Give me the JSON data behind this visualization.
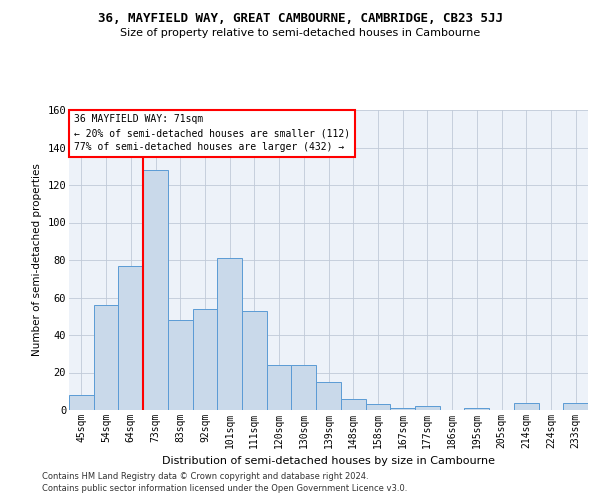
{
  "title": "36, MAYFIELD WAY, GREAT CAMBOURNE, CAMBRIDGE, CB23 5JJ",
  "subtitle": "Size of property relative to semi-detached houses in Cambourne",
  "xlabel": "Distribution of semi-detached houses by size in Cambourne",
  "ylabel": "Number of semi-detached properties",
  "categories": [
    "45sqm",
    "54sqm",
    "64sqm",
    "73sqm",
    "83sqm",
    "92sqm",
    "101sqm",
    "111sqm",
    "120sqm",
    "130sqm",
    "139sqm",
    "148sqm",
    "158sqm",
    "167sqm",
    "177sqm",
    "186sqm",
    "195sqm",
    "205sqm",
    "214sqm",
    "224sqm",
    "233sqm"
  ],
  "values": [
    8,
    56,
    77,
    128,
    48,
    54,
    81,
    53,
    24,
    24,
    15,
    6,
    3,
    1,
    2,
    0,
    1,
    0,
    4,
    0,
    4
  ],
  "bar_color": "#c9d9ea",
  "bar_edge_color": "#5b9bd5",
  "pct_smaller": 20,
  "n_smaller": 112,
  "pct_larger": 77,
  "n_larger": 432,
  "vline_color": "red",
  "vline_x_index": 2.5,
  "ylim": [
    0,
    160
  ],
  "yticks": [
    0,
    20,
    40,
    60,
    80,
    100,
    120,
    140,
    160
  ],
  "footnote1": "Contains HM Land Registry data © Crown copyright and database right 2024.",
  "footnote2": "Contains public sector information licensed under the Open Government Licence v3.0.",
  "background_color": "#ffffff",
  "plot_bg_color": "#edf2f9",
  "grid_color": "#c0cad8"
}
